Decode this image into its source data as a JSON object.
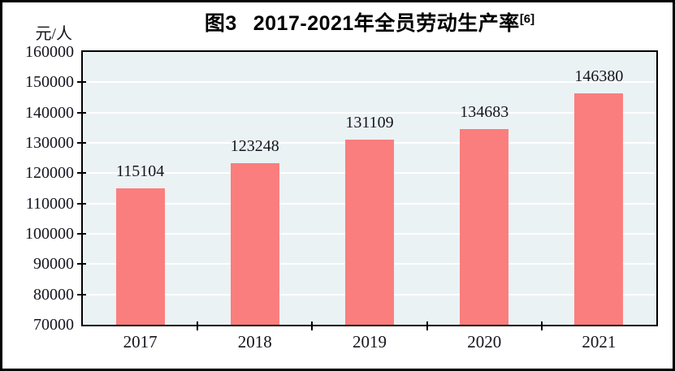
{
  "figure": {
    "title_prefix": "图3",
    "title_main": "2017-2021年全员劳动生产率",
    "title_superscript": "[6]",
    "y_axis_unit": "元/人"
  },
  "chart_data": {
    "type": "bar",
    "title": "图3 2017-2021年全员劳动生产率[6]",
    "categories": [
      "2017",
      "2018",
      "2019",
      "2020",
      "2021"
    ],
    "values": [
      115104,
      123248,
      131109,
      134683,
      146380
    ],
    "xlabel": "",
    "ylabel": "元/人",
    "ylim": [
      70000,
      160000
    ],
    "ytick_step": 10000,
    "ytick_labels": [
      "160000",
      "150000",
      "140000",
      "130000",
      "120000",
      "110000",
      "100000",
      "90000",
      "80000",
      "70000"
    ],
    "grid": true,
    "gridline_color": "#ffffff",
    "plot_background": "#ebf2f4",
    "bar_color": "#fb7e7e",
    "axis_frame_color": "#000000",
    "text_color": "#14141e",
    "legend_position": "none",
    "data_labels_shown": true
  }
}
